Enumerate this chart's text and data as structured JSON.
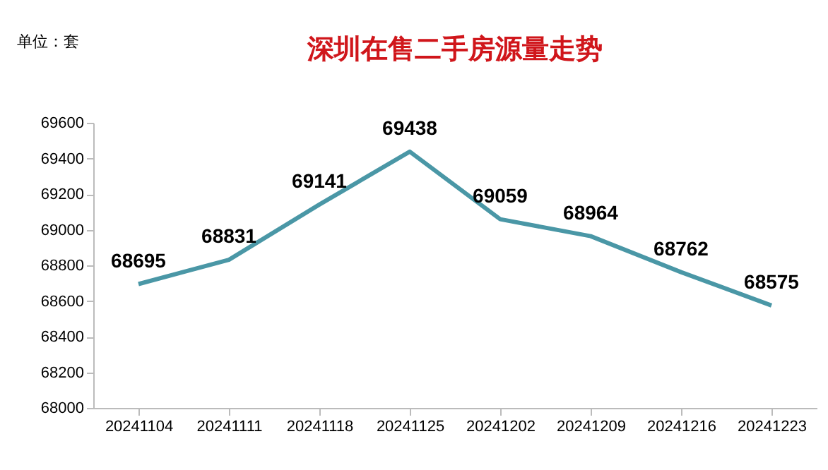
{
  "chart_data": {
    "type": "line",
    "title": "深圳在售二手房源量走势",
    "annotations": [
      "单位：套"
    ],
    "categories": [
      "20241104",
      "20241111",
      "20241118",
      "20241125",
      "20241202",
      "20241209",
      "20241216",
      "20241223"
    ],
    "series": [
      {
        "color": "#4a97a6",
        "values": [
          68695,
          68831,
          69141,
          69438,
          69059,
          68964,
          68762,
          68575
        ]
      }
    ],
    "ylim": [
      68000,
      69600
    ],
    "yticks": [
      68000,
      68200,
      68400,
      68600,
      68800,
      69000,
      69200,
      69400,
      69600
    ],
    "grid": false,
    "legend": false,
    "data_labels": true,
    "marker": "none",
    "line_style": "solid"
  }
}
